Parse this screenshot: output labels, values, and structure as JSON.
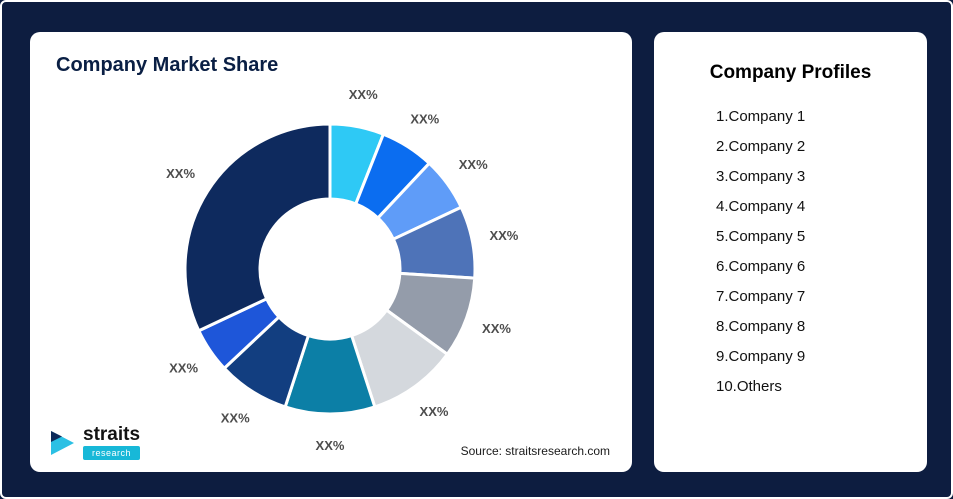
{
  "theme": {
    "background": "#0d1d40",
    "card": "#ffffff",
    "accent_cyan": "#17b8d8",
    "title_color": "#0a1f44"
  },
  "left_card": {
    "title": "Company Market Share",
    "source": "Source: straitsresearch.com",
    "logo": {
      "name": "straits",
      "sub": "research"
    }
  },
  "profiles": {
    "title": "Company Profiles",
    "items": [
      "1.Company 1",
      "2.Company 2",
      "3.Company 3",
      "4.Company 4",
      "5.Company 5",
      "6.Company 6",
      "7.Company 7",
      "8.Company 8",
      "9.Company 9",
      "10.Others"
    ]
  },
  "chart_data": {
    "type": "pie",
    "subtype": "donut",
    "title": "Company Market Share",
    "segment_label": "XX%",
    "labels": [
      "Company 1",
      "Company 2",
      "Company 3",
      "Company 4",
      "Company 5",
      "Company 6",
      "Company 7",
      "Company 8",
      "Company 9",
      "Others"
    ],
    "values": [
      6,
      6,
      6,
      8,
      9,
      10,
      10,
      8,
      5,
      32
    ],
    "colors": [
      "#2ec9f5",
      "#0b6df0",
      "#5f9cf8",
      "#4e73b8",
      "#949caa",
      "#d4d8dd",
      "#0c7fa6",
      "#123e80",
      "#1e56d9",
      "#0e2a5e"
    ],
    "start_angle_deg": 0,
    "direction": "clockwise",
    "legend_position": "none",
    "note": "All segments display placeholder label XX%"
  }
}
